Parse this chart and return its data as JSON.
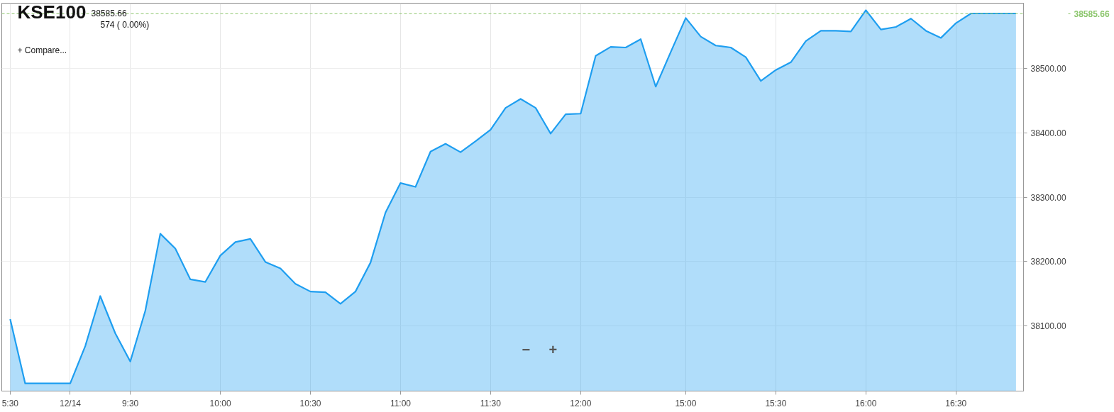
{
  "chart_data": {
    "type": "area",
    "title": "KSE100",
    "categories": [
      "5:30",
      null,
      null,
      null,
      "12/14",
      null,
      null,
      null,
      "9:30",
      null,
      null,
      null,
      null,
      null,
      "10:00",
      null,
      null,
      null,
      null,
      null,
      "10:30",
      null,
      null,
      null,
      null,
      null,
      "11:00",
      null,
      null,
      null,
      null,
      null,
      "11:30",
      null,
      null,
      null,
      null,
      null,
      "12:00",
      null,
      null,
      null,
      null,
      null,
      null,
      "15:00",
      null,
      null,
      null,
      null,
      null,
      "15:30",
      null,
      null,
      null,
      null,
      null,
      "16:00",
      null,
      null,
      null,
      null,
      null,
      "16:30",
      null,
      null,
      null,
      null
    ],
    "series": [
      {
        "color": "#1e9ef0",
        "values": [
          38110,
          38010,
          38010,
          38010,
          38010,
          38068,
          38146,
          38088,
          38044,
          38123,
          38243,
          38220,
          38172,
          38168,
          38209,
          38230,
          38235,
          38199,
          38189,
          38165,
          38153,
          38152,
          38134,
          38153,
          38198,
          38276,
          38322,
          38316,
          38371,
          38383,
          38370,
          38387,
          38405,
          38439,
          38453,
          38439,
          38399,
          38429,
          38430,
          38520,
          38534,
          38533,
          38546,
          38472,
          38526,
          38579,
          38550,
          38536,
          38533,
          38518,
          38481,
          38498,
          38510,
          38543,
          38559,
          38559,
          38558,
          38591,
          38561,
          38565,
          38578,
          38559,
          38548,
          38571,
          38586,
          38586,
          38586,
          38586
        ]
      }
    ],
    "ylim": [
      37998,
      38602
    ],
    "yticks": [
      {
        "value": 38100,
        "label": "38100.00"
      },
      {
        "value": 38200,
        "label": "38200.00"
      },
      {
        "value": 38300,
        "label": "38300.00"
      },
      {
        "value": 38400,
        "label": "38400.00"
      },
      {
        "value": 38500,
        "label": "38500.00"
      }
    ],
    "ref_lines": [
      {
        "axis": "y",
        "value": 38585.66,
        "label": "38585.66",
        "color": "#8cc66d",
        "line_style": "dashed"
      }
    ],
    "annotations": [
      "38585.66",
      "574 ( 0.00%)",
      "+ Compare...",
      "−",
      "+"
    ],
    "grid": true
  }
}
